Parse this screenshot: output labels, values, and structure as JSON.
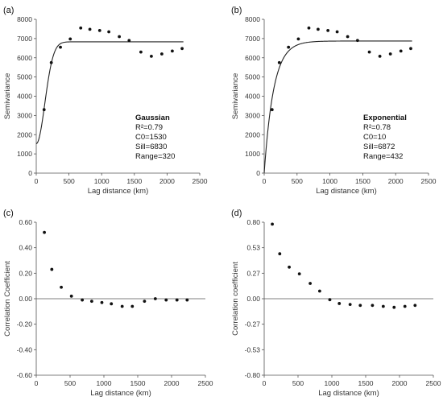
{
  "chart_data": [
    {
      "type": "scatter",
      "panel_label": "(a)",
      "xlabel": "Lag distance (km)",
      "ylabel": "Semivariance",
      "xlim": [
        0,
        2500
      ],
      "ylim": [
        0,
        8000
      ],
      "xticks": [
        "0",
        "500",
        "1000",
        "1500",
        "2000",
        "2500"
      ],
      "yticks": [
        "0",
        "1000",
        "2000",
        "3000",
        "4000",
        "5000",
        "6000",
        "7000",
        "8000"
      ],
      "points": {
        "x": [
          120,
          230,
          370,
          520,
          680,
          820,
          970,
          1110,
          1270,
          1420,
          1600,
          1760,
          1920,
          2080,
          2230
        ],
        "y": [
          3300,
          5750,
          6550,
          6980,
          7550,
          7480,
          7420,
          7350,
          7100,
          6900,
          6300,
          6080,
          6200,
          6350,
          6480
        ]
      },
      "model": {
        "name": "Gaussian",
        "r2": "R²=0.79",
        "c0": "C0=1530",
        "sill": "Sill=6830",
        "range": "Range=320",
        "nugget": 1530,
        "sill_value": 6830,
        "range_value": 320,
        "type": "gaussian",
        "x_end": 2250
      },
      "legend": "bottom-right",
      "grid": false
    },
    {
      "type": "scatter",
      "panel_label": "(b)",
      "xlabel": "Lag distance (km)",
      "ylabel": "Semivariance",
      "xlim": [
        0,
        2500
      ],
      "ylim": [
        0,
        8000
      ],
      "xticks": [
        "0",
        "500",
        "1000",
        "1500",
        "2000",
        "2500"
      ],
      "yticks": [
        "0",
        "1000",
        "2000",
        "3000",
        "4000",
        "5000",
        "6000",
        "7000",
        "8000"
      ],
      "points": {
        "x": [
          120,
          230,
          370,
          520,
          680,
          820,
          970,
          1110,
          1270,
          1420,
          1600,
          1760,
          1920,
          2080,
          2230
        ],
        "y": [
          3300,
          5750,
          6550,
          6980,
          7550,
          7480,
          7420,
          7350,
          7100,
          6900,
          6300,
          6080,
          6200,
          6350,
          6480
        ]
      },
      "model": {
        "name": "Exponential",
        "r2": "R²=0.78",
        "c0": "C0=10",
        "sill": "Sill=6872",
        "range": "Range=432",
        "nugget": 10,
        "sill_value": 6872,
        "range_value": 432,
        "type": "exponential",
        "x_end": 2250
      },
      "legend": "bottom-right",
      "grid": false
    },
    {
      "type": "scatter",
      "panel_label": "(c)",
      "xlabel": "Lag distance (km)",
      "ylabel": "Correlation Coefficient",
      "xlim": [
        0,
        2500
      ],
      "ylim": [
        -0.6,
        0.6
      ],
      "xticks": [
        "0",
        "500",
        "1000",
        "1500",
        "2000",
        "2500"
      ],
      "yticks": [
        "-0.60",
        "-0.40",
        "-0.20",
        "0.00",
        "0.20",
        "0.40",
        "0.60"
      ],
      "points": {
        "x": [
          120,
          230,
          370,
          520,
          680,
          820,
          970,
          1110,
          1270,
          1420,
          1600,
          1760,
          1920,
          2080,
          2230
        ],
        "y": [
          0.52,
          0.23,
          0.09,
          0.02,
          -0.01,
          -0.02,
          -0.03,
          -0.04,
          -0.06,
          -0.06,
          -0.02,
          0.0,
          -0.01,
          -0.01,
          -0.01
        ]
      },
      "grid": false
    },
    {
      "type": "scatter",
      "panel_label": "(d)",
      "xlabel": "Lag distance (km)",
      "ylabel": "Correlation coefficient",
      "xlim": [
        0,
        2500
      ],
      "ylim": [
        -0.8,
        0.8
      ],
      "xticks": [
        "0",
        "500",
        "1000",
        "1500",
        "2000",
        "2500"
      ],
      "yticks": [
        "-0.80",
        "-0.53",
        "-0.27",
        "0.00",
        "0.27",
        "0.53",
        "0.80"
      ],
      "points": {
        "x": [
          120,
          230,
          370,
          520,
          680,
          820,
          970,
          1110,
          1270,
          1420,
          1600,
          1760,
          1920,
          2080,
          2230
        ],
        "y": [
          0.78,
          0.47,
          0.33,
          0.26,
          0.16,
          0.08,
          -0.01,
          -0.05,
          -0.06,
          -0.07,
          -0.07,
          -0.08,
          -0.09,
          -0.08,
          -0.07
        ]
      },
      "grid": false
    }
  ]
}
